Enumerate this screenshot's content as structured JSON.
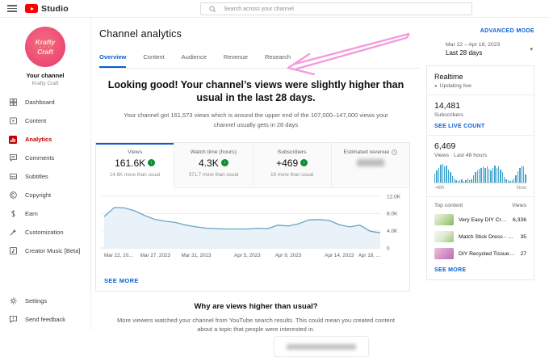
{
  "topbar": {
    "brand": "Studio",
    "search_placeholder": "Search across your channel"
  },
  "sidebar": {
    "avatar_line1": "Krafty",
    "avatar_dots": "• • •",
    "avatar_line2": "Craft",
    "your_channel": "Your channel",
    "channel_name": "Krafty Craft",
    "items": [
      {
        "label": "Dashboard"
      },
      {
        "label": "Content"
      },
      {
        "label": "Analytics"
      },
      {
        "label": "Comments"
      },
      {
        "label": "Subtitles"
      },
      {
        "label": "Copyright"
      },
      {
        "label": "Earn"
      },
      {
        "label": "Customization"
      },
      {
        "label": "Creator Music [Beta]"
      }
    ],
    "footer_items": [
      {
        "label": "Settings"
      },
      {
        "label": "Send feedback"
      }
    ]
  },
  "header": {
    "title": "Channel analytics",
    "advanced_mode": "ADVANCED MODE",
    "tabs": [
      {
        "label": "Overview"
      },
      {
        "label": "Content"
      },
      {
        "label": "Audience"
      },
      {
        "label": "Revenue"
      },
      {
        "label": "Research"
      }
    ],
    "date_range": "Mar 22 – Apr 18, 2023",
    "date_preset": "Last 28 days",
    "caret": "▾"
  },
  "summary": {
    "headline": "Looking good! Your channel’s views were slightly higher than usual in the last 28 days.",
    "subtext": "Your channel got 161,573 views which is around the upper end of the 107,000–147,000 views your channel usually gets in 28 days"
  },
  "metrics": [
    {
      "label": "Views",
      "value": "161.6K",
      "delta": "14.6K more than usual"
    },
    {
      "label": "Watch time (hours)",
      "value": "4.3K",
      "delta": "371.7 more than usual"
    },
    {
      "label": "Subscribers",
      "value": "+469",
      "delta": "19 more than usual"
    },
    {
      "label": "Estimated revenue"
    }
  ],
  "icons": {
    "up_arrow": "↑",
    "live_dot": "●"
  },
  "see_more": "SEE MORE",
  "insight": {
    "title": "Why are views higher than usual?",
    "body": "More viewers watched your channel from YouTube search results. This could mean you created content about a topic that people were interested in."
  },
  "realtime": {
    "title": "Realtime",
    "updating": "Updating live",
    "subscribers_value": "14,481",
    "subscribers_label": "Subscribers",
    "live_count_link": "SEE LIVE COUNT",
    "views_value": "6,469",
    "views_label": "Views · Last 48 hours",
    "axis_left": "-48h",
    "axis_right": "Now",
    "top_content_label": "Top content",
    "views_col_label": "Views",
    "rows": [
      {
        "title": "Very Easy DIY Craft Flowe...",
        "views": "6,336"
      },
      {
        "title": "Match Stick Dress - Easy 5 ...",
        "views": "35"
      },
      {
        "title": "DIY Recycled Tissue Roll Ka...",
        "views": "27"
      }
    ],
    "see_more": "SEE MORE"
  },
  "colors": {
    "accent_blue": "#065fd4",
    "youtube_red": "#ff0000",
    "active_red": "#c00000",
    "chart_line": "#6aa5c2",
    "chart_fill": "#e8f2f8",
    "realtime_bar": "#45a4cf",
    "positive_green": "#0f8a35",
    "annotation_pink": "#f49bdc"
  },
  "chart_data": [
    {
      "type": "area",
      "title": "Channel views, last 28 days",
      "x": [
        "Mar 22",
        "Mar 23",
        "Mar 24",
        "Mar 25",
        "Mar 26",
        "Mar 27",
        "Mar 28",
        "Mar 29",
        "Mar 30",
        "Mar 31",
        "Apr 1",
        "Apr 2",
        "Apr 3",
        "Apr 4",
        "Apr 5",
        "Apr 6",
        "Apr 7",
        "Apr 8",
        "Apr 9",
        "Apr 10",
        "Apr 11",
        "Apr 12",
        "Apr 13",
        "Apr 14",
        "Apr 15",
        "Apr 16",
        "Apr 17",
        "Apr 18"
      ],
      "values": [
        7300,
        9400,
        9300,
        8600,
        7500,
        6600,
        6200,
        5900,
        5300,
        4900,
        4600,
        4500,
        4400,
        4400,
        4400,
        4600,
        4500,
        5300,
        5100,
        5600,
        6500,
        6600,
        6400,
        5400,
        4900,
        5300,
        3900,
        3500
      ],
      "ylim": [
        0,
        12000
      ],
      "grid": true,
      "legend": "none",
      "y_ticks": [
        {
          "label": "12.0K",
          "value": 12000
        },
        {
          "label": "8.0K",
          "value": 8000
        },
        {
          "label": "4.0K",
          "value": 4000
        },
        {
          "label": "0",
          "value": 0
        }
      ],
      "x_ticks": [
        {
          "label": "Mar 22, 20...",
          "day": 0
        },
        {
          "label": "Mar 27, 2023",
          "day": 5
        },
        {
          "label": "Mar 31, 2023",
          "day": 9
        },
        {
          "label": "Apr 5, 2023",
          "day": 14
        },
        {
          "label": "Apr 9, 2023",
          "day": 18
        },
        {
          "label": "Apr 14, 2023",
          "day": 23
        },
        {
          "label": "Apr 18, ...",
          "day": 27
        }
      ]
    },
    {
      "type": "bar",
      "title": "Realtime views, last 48 hours",
      "xlabels": [
        "-48h",
        "Now"
      ],
      "values": [
        50,
        65,
        80,
        95,
        100,
        85,
        90,
        70,
        55,
        35,
        22,
        14,
        10,
        12,
        16,
        10,
        14,
        20,
        14,
        18,
        40,
        55,
        65,
        72,
        78,
        85,
        80,
        88,
        75,
        65,
        80,
        90,
        78,
        85,
        70,
        55,
        30,
        18,
        12,
        10,
        14,
        22,
        40,
        60,
        78,
        92,
        85,
        45
      ]
    }
  ]
}
